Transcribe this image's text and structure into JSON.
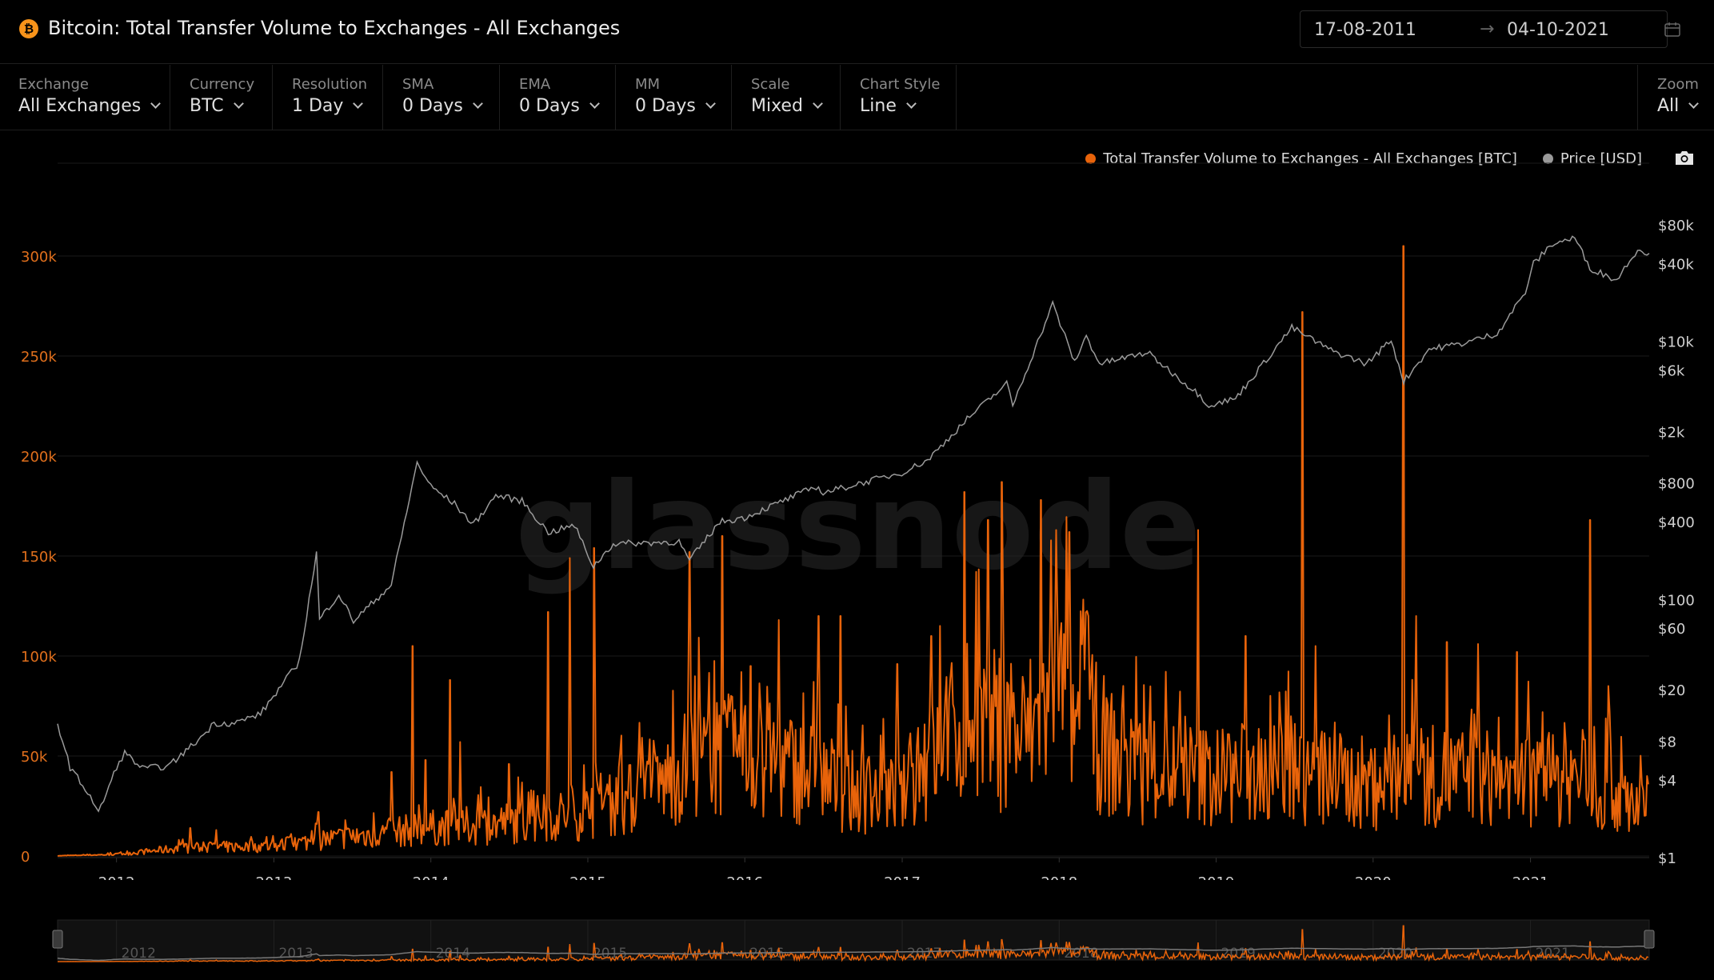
{
  "header": {
    "title": "Bitcoin: Total Transfer Volume to Exchanges - All Exchanges",
    "logo_icon": "bitcoin-icon",
    "date_from": "17-08-2011",
    "date_arrow": "→",
    "date_to": "04-10-2021",
    "calendar_icon": "calendar-icon"
  },
  "toolbar": [
    {
      "label": "Exchange",
      "value": "All Exchanges"
    },
    {
      "label": "Currency",
      "value": "BTC"
    },
    {
      "label": "Resolution",
      "value": "1 Day"
    },
    {
      "label": "SMA",
      "value": "0 Days"
    },
    {
      "label": "EMA",
      "value": "0 Days"
    },
    {
      "label": "MM",
      "value": "0 Days"
    },
    {
      "label": "Scale",
      "value": "Mixed"
    },
    {
      "label": "Chart Style",
      "value": "Line"
    }
  ],
  "zoom": {
    "label": "Zoom",
    "value": "All"
  },
  "legend": [
    {
      "name": "Total Transfer Volume to Exchanges - All Exchanges [BTC]",
      "color": "#e8630a"
    },
    {
      "name": "Price [USD]",
      "color": "#9a9a9a"
    }
  ],
  "watermark": "glassnode",
  "colors": {
    "volume": "#e8630a",
    "price": "#9a9a9a",
    "background": "#000000",
    "left_axis": "#e06f1c"
  },
  "chart_data": {
    "type": "line",
    "x_range": [
      "2011-08-17",
      "2021-10-04"
    ],
    "x_ticks": [
      "2012",
      "2013",
      "2014",
      "2015",
      "2016",
      "2017",
      "2018",
      "2019",
      "2020",
      "2021"
    ],
    "y_left": {
      "label": "",
      "ticks": [
        0,
        50000,
        100000,
        150000,
        200000,
        250000,
        300000
      ],
      "tick_labels": [
        "0",
        "50k",
        "100k",
        "150k",
        "200k",
        "250k",
        "300k"
      ],
      "lim": [
        0,
        300000
      ]
    },
    "y_right": {
      "label": "",
      "scale": "log",
      "ticks": [
        1,
        4,
        8,
        20,
        60,
        100,
        400,
        800,
        2000,
        6000,
        10000,
        40000,
        80000
      ],
      "tick_labels": [
        "$1",
        "$4",
        "$8",
        "$20",
        "$60",
        "$100",
        "$400",
        "$800",
        "$2k",
        "$6k",
        "$10k",
        "$40k",
        "$80k"
      ]
    },
    "grid": true,
    "legend_position": "top-right",
    "series": [
      {
        "name": "Total Transfer Volume to Exchanges - All Exchanges [BTC]",
        "axis": "left",
        "baseline": [
          [
            "2011-08-17",
            100
          ],
          [
            "2012-01-01",
            800
          ],
          [
            "2012-06-01",
            4000
          ],
          [
            "2013-01-01",
            5000
          ],
          [
            "2013-06-01",
            9000
          ],
          [
            "2014-01-01",
            14000
          ],
          [
            "2014-06-01",
            16000
          ],
          [
            "2015-01-01",
            22000
          ],
          [
            "2015-06-01",
            32000
          ],
          [
            "2015-09-01",
            48000
          ],
          [
            "2016-01-01",
            50000
          ],
          [
            "2016-06-01",
            42000
          ],
          [
            "2016-09-01",
            32000
          ],
          [
            "2017-01-01",
            30000
          ],
          [
            "2017-06-01",
            70000
          ],
          [
            "2017-10-01",
            58000
          ],
          [
            "2018-01-01",
            78000
          ],
          [
            "2018-06-01",
            45000
          ],
          [
            "2019-01-01",
            40000
          ],
          [
            "2019-06-01",
            42000
          ],
          [
            "2020-01-01",
            36000
          ],
          [
            "2020-06-01",
            40000
          ],
          [
            "2021-01-01",
            38000
          ],
          [
            "2021-06-01",
            35000
          ],
          [
            "2021-10-04",
            25000
          ]
        ],
        "spikes": [
          [
            "2012-06-20",
            14000
          ],
          [
            "2012-08-20",
            13000
          ],
          [
            "2013-04-15",
            22000
          ],
          [
            "2013-10-01",
            42000
          ],
          [
            "2013-11-20",
            105000
          ],
          [
            "2013-12-20",
            48000
          ],
          [
            "2014-02-15",
            88000
          ],
          [
            "2014-03-10",
            57000
          ],
          [
            "2014-07-01",
            46000
          ],
          [
            "2014-10-01",
            122000
          ],
          [
            "2014-11-20",
            149000
          ],
          [
            "2015-01-15",
            154000
          ],
          [
            "2015-08-25",
            152000
          ],
          [
            "2015-11-10",
            160000
          ],
          [
            "2016-01-15",
            95000
          ],
          [
            "2016-03-20",
            118000
          ],
          [
            "2016-06-20",
            120000
          ],
          [
            "2016-08-10",
            120000
          ],
          [
            "2016-12-20",
            96000
          ],
          [
            "2017-03-10",
            110000
          ],
          [
            "2017-05-25",
            182000
          ],
          [
            "2017-07-20",
            168000
          ],
          [
            "2017-08-20",
            187000
          ],
          [
            "2017-11-20",
            178000
          ],
          [
            "2017-12-25",
            163000
          ],
          [
            "2018-01-25",
            162000
          ],
          [
            "2018-03-10",
            120000
          ],
          [
            "2018-11-20",
            163000
          ],
          [
            "2019-03-10",
            110000
          ],
          [
            "2019-07-20",
            272000
          ],
          [
            "2019-08-20",
            105000
          ],
          [
            "2020-03-12",
            305000
          ],
          [
            "2020-04-10",
            120000
          ],
          [
            "2020-06-20",
            107000
          ],
          [
            "2020-09-01",
            106000
          ],
          [
            "2020-12-01",
            102000
          ],
          [
            "2021-05-19",
            168000
          ],
          [
            "2021-07-01",
            85000
          ]
        ]
      },
      {
        "name": "Price [USD]",
        "axis": "right",
        "points": [
          [
            "2011-08-17",
            11
          ],
          [
            "2011-09-15",
            5
          ],
          [
            "2011-11-01",
            3
          ],
          [
            "2011-11-20",
            2.2
          ],
          [
            "2012-01-01",
            5
          ],
          [
            "2012-01-20",
            6.5
          ],
          [
            "2012-03-01",
            4.9
          ],
          [
            "2012-05-01",
            5.1
          ],
          [
            "2012-07-15",
            8.5
          ],
          [
            "2012-08-15",
            11
          ],
          [
            "2012-10-01",
            11
          ],
          [
            "2012-12-01",
            13
          ],
          [
            "2013-03-01",
            33
          ],
          [
            "2013-04-10",
            230
          ],
          [
            "2013-04-17",
            70
          ],
          [
            "2013-06-01",
            110
          ],
          [
            "2013-07-05",
            68
          ],
          [
            "2013-10-01",
            130
          ],
          [
            "2013-11-30",
            1150
          ],
          [
            "2014-01-01",
            750
          ],
          [
            "2014-02-25",
            550
          ],
          [
            "2014-04-10",
            380
          ],
          [
            "2014-06-01",
            640
          ],
          [
            "2014-08-01",
            580
          ],
          [
            "2014-10-01",
            330
          ],
          [
            "2014-12-01",
            375
          ],
          [
            "2015-01-14",
            180
          ],
          [
            "2015-03-01",
            270
          ],
          [
            "2015-08-01",
            280
          ],
          [
            "2015-08-25",
            200
          ],
          [
            "2015-11-04",
            400
          ],
          [
            "2015-12-31",
            430
          ],
          [
            "2016-06-15",
            750
          ],
          [
            "2016-07-01",
            670
          ],
          [
            "2016-12-31",
            960
          ],
          [
            "2017-03-01",
            1200
          ],
          [
            "2017-06-01",
            2500
          ],
          [
            "2017-09-01",
            4700
          ],
          [
            "2017-09-15",
            3200
          ],
          [
            "2017-12-17",
            19500
          ],
          [
            "2018-02-06",
            6900
          ],
          [
            "2018-03-05",
            11000
          ],
          [
            "2018-04-05",
            6700
          ],
          [
            "2018-07-25",
            8200
          ],
          [
            "2018-11-25",
            3800
          ],
          [
            "2018-12-15",
            3200
          ],
          [
            "2019-02-15",
            3600
          ],
          [
            "2019-06-26",
            12800
          ],
          [
            "2019-09-25",
            8500
          ],
          [
            "2019-12-17",
            6700
          ],
          [
            "2020-02-12",
            10300
          ],
          [
            "2020-03-12",
            4900
          ],
          [
            "2020-05-10",
            8700
          ],
          [
            "2020-07-25",
            9600
          ],
          [
            "2020-10-15",
            11500
          ],
          [
            "2020-12-20",
            24000
          ],
          [
            "2021-01-08",
            40000
          ],
          [
            "2021-02-21",
            57000
          ],
          [
            "2021-04-14",
            63500
          ],
          [
            "2021-05-19",
            37000
          ],
          [
            "2021-07-20",
            29800
          ],
          [
            "2021-09-07",
            52000
          ],
          [
            "2021-10-04",
            48000
          ]
        ]
      }
    ]
  }
}
